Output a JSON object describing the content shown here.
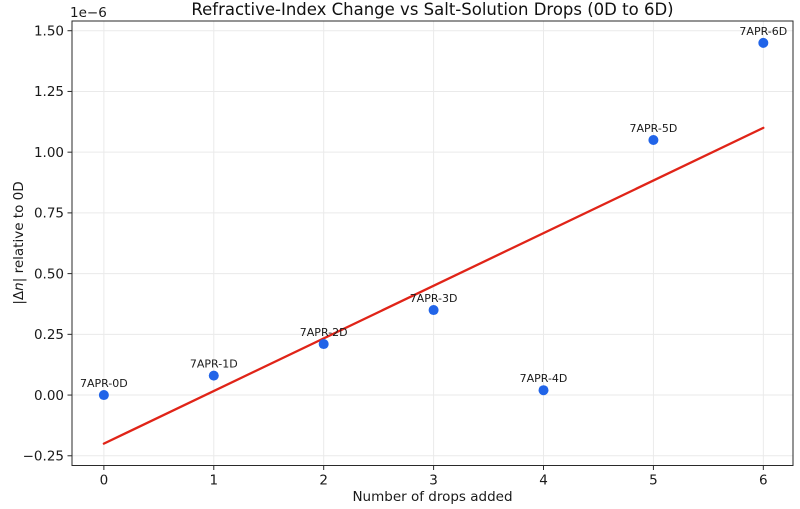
{
  "figure": {
    "title": "Refractive-Index Change vs Salt-Solution Drops (0D to 6D)",
    "offset_text": "1e−6",
    "xlabel": "Number of drops added",
    "ylabel_prefix": "|Δ",
    "ylabel_italic": "n",
    "ylabel_suffix": "| relative to 0D"
  },
  "chart_data": {
    "type": "scatter",
    "title": "Refractive-Index Change vs Salt-Solution Drops (0D to 6D)",
    "xlabel": "Number of drops added",
    "ylabel": "|Δn| relative to 0D",
    "y_scale_factor": "1e−6",
    "grid": true,
    "legend": "none",
    "xlim": [
      -0.29,
      6.27
    ],
    "ylim": [
      -0.29,
      1.54
    ],
    "x_ticks": [
      0,
      1,
      2,
      3,
      4,
      5,
      6
    ],
    "y_ticks": [
      -0.25,
      0,
      0.25,
      0.5,
      0.75,
      1,
      1.25,
      1.5
    ],
    "y_tick_labels": [
      "−0.25",
      "0.00",
      "0.25",
      "0.50",
      "0.75",
      "1.00",
      "1.25",
      "1.50"
    ],
    "points": [
      {
        "x": 0,
        "y": 0.0,
        "label": "7APR-0D"
      },
      {
        "x": 1,
        "y": 0.08,
        "label": "7APR-1D"
      },
      {
        "x": 2,
        "y": 0.21,
        "label": "7APR-2D"
      },
      {
        "x": 3,
        "y": 0.35,
        "label": "7APR-3D"
      },
      {
        "x": 4,
        "y": 0.02,
        "label": "7APR-4D"
      },
      {
        "x": 5,
        "y": 1.05,
        "label": "7APR-5D"
      },
      {
        "x": 6,
        "y": 1.45,
        "label": "7APR-6D"
      }
    ],
    "trendline": {
      "kind": "linear-fit",
      "x0": 0,
      "y0": -0.2,
      "x1": 6,
      "y1": 1.1,
      "slope": 0.218,
      "intercept": -0.203
    },
    "colors": {
      "point": "#2164e8",
      "trend": "#e02418",
      "grid": "#eaeaea",
      "spine": "#2a2a2a",
      "text": "#1a1a1a"
    }
  }
}
